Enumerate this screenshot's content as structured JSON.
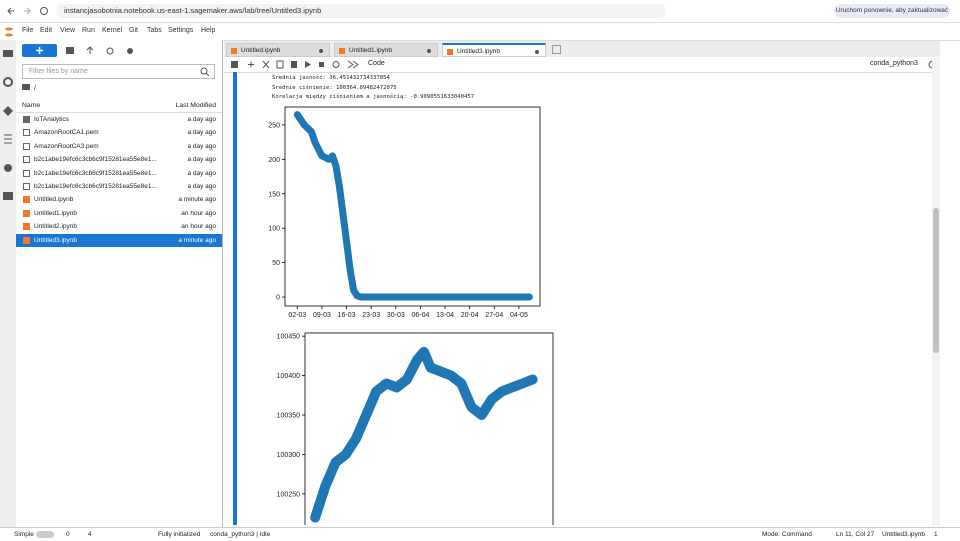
{
  "browser": {
    "url": "instancjasobotnia.notebook.us-east-1.sagemaker.aws/lab/tree/Untitled3.ipynb",
    "update_button": "Uruchom ponownie, aby zaktualizować"
  },
  "menu": [
    "File",
    "Edit",
    "View",
    "Run",
    "Kernel",
    "Git",
    "Tabs",
    "Settings",
    "Help"
  ],
  "file_browser": {
    "filter_placeholder": "Filter files by name",
    "path": "/",
    "column_name": "Name",
    "column_modified": "Last Modified",
    "files": [
      {
        "name": "IoTAnalytics",
        "modified": "a day ago"
      },
      {
        "name": "AmazonRootCA1.pem",
        "modified": "a day ago"
      },
      {
        "name": "AmazonRootCA3.pem",
        "modified": "a day ago"
      },
      {
        "name": "b2c1abe19efc6c3cb6c9f15281ea55e8e1...",
        "modified": "a day ago"
      },
      {
        "name": "b2c1abe19efc6c3cb6c9f15281ea55e8e1...",
        "modified": "a day ago"
      },
      {
        "name": "b2c1abe19efc6c3cb6c9f15281ea55e8e1...",
        "modified": "a day ago"
      },
      {
        "name": "Untitled.ipynb",
        "modified": "a minute ago"
      },
      {
        "name": "Untitled1.ipynb",
        "modified": "an hour ago"
      },
      {
        "name": "Untitled2.ipynb",
        "modified": "an hour ago"
      },
      {
        "name": "Untitled3.ipynb",
        "modified": "a minute ago"
      }
    ]
  },
  "tabs": [
    "Untitled.ipynb",
    "Untitled1.ipynb",
    "Untitled3.ipynb"
  ],
  "notebook_toolbar": {
    "cell_type": "Code",
    "kernel": "conda_python3"
  },
  "output_lines": [
    "Średnia jasność: 36.451432734337854",
    "Średnie ciśnienie: 100364.09482472075",
    "Korelacja między ciśnieniem a jasnością: -0.9090551633040457"
  ],
  "chart_data": [
    {
      "type": "scatter",
      "color": "#1f77b4",
      "x": [
        0,
        2,
        4,
        5,
        6,
        7,
        9,
        10,
        11,
        12,
        13,
        14,
        15,
        16,
        17,
        18,
        30,
        45,
        60,
        66
      ],
      "values": [
        265,
        250,
        240,
        225,
        215,
        205,
        200,
        205,
        190,
        160,
        120,
        80,
        40,
        10,
        2,
        0,
        0,
        0,
        0,
        0
      ],
      "xlim": [
        -3.5,
        69
      ],
      "xticks": [
        {
          "value": 0,
          "label": "02-03"
        },
        {
          "value": 7,
          "label": "09-03"
        },
        {
          "value": 14,
          "label": "16-03"
        },
        {
          "value": 21,
          "label": "23-03"
        },
        {
          "value": 28,
          "label": "30-03"
        },
        {
          "value": 35,
          "label": "06-04"
        },
        {
          "value": 42,
          "label": "13-04"
        },
        {
          "value": 49,
          "label": "20-04"
        },
        {
          "value": 56,
          "label": "27-04"
        },
        {
          "value": 63,
          "label": "04-05"
        }
      ],
      "ylim": [
        -13,
        276
      ],
      "yticks": [
        0,
        50,
        100,
        150,
        200,
        250
      ]
    },
    {
      "type": "scatter",
      "color": "#1f77b4",
      "x": [
        0,
        3,
        6,
        9,
        12,
        15,
        18,
        21,
        24,
        27,
        30,
        32,
        34,
        37,
        40,
        43,
        46,
        49,
        52,
        55,
        58,
        61,
        64
      ],
      "values": [
        100220,
        100260,
        100290,
        100300,
        100320,
        100350,
        100380,
        100390,
        100385,
        100395,
        100420,
        100430,
        100410,
        100405,
        100400,
        100390,
        100360,
        100350,
        100370,
        100380,
        100385,
        100390,
        100395
      ],
      "xlim": [
        -3,
        70
      ],
      "ylim": [
        100208,
        100454
      ],
      "yticks": [
        100250,
        100300,
        100350,
        100400,
        100450
      ]
    }
  ],
  "status_bar": {
    "mode_toggle": "Simple",
    "terminals": "0",
    "kernels": "4",
    "init": "Fully initialized",
    "kernel_state": "conda_python3 | Idle",
    "mode": "Mode: Command",
    "position": "Ln 11, Col 27",
    "file": "Untitled3.ipynb",
    "count": "1"
  }
}
